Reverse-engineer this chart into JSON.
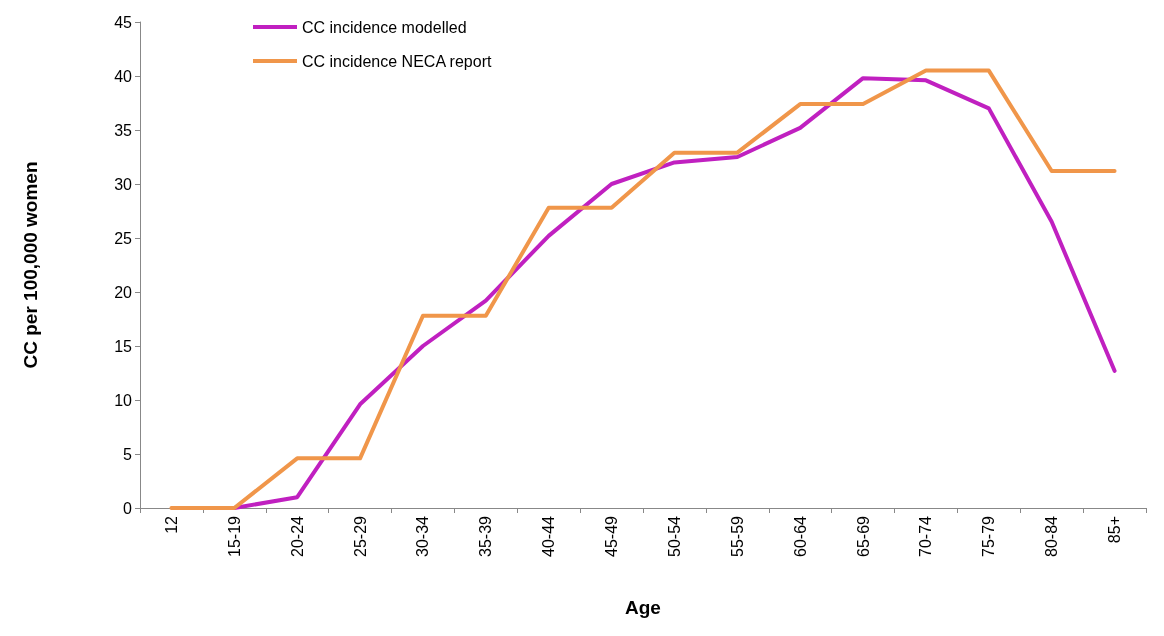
{
  "chart_data": {
    "type": "line",
    "xlabel": "Age",
    "ylabel": "CC per 100,000 women",
    "categories": [
      "12",
      "15-19",
      "20-24",
      "25-29",
      "30-34",
      "35-39",
      "40-44",
      "45-49",
      "50-54",
      "55-59",
      "60-64",
      "65-69",
      "70-74",
      "75-79",
      "80-84",
      "85+"
    ],
    "series": [
      {
        "name": "CC incidence modelled",
        "color": "#c020c0",
        "values": [
          null,
          0,
          1.0,
          9.6,
          15.0,
          19.2,
          25.2,
          30.0,
          32.0,
          32.5,
          35.2,
          39.8,
          39.6,
          37.0,
          26.5,
          12.7
        ]
      },
      {
        "name": "CC incidence NECA report",
        "color": "#f0964a",
        "values": [
          0,
          0,
          4.6,
          4.6,
          17.8,
          17.8,
          27.8,
          27.8,
          32.9,
          32.9,
          37.4,
          37.4,
          40.5,
          40.5,
          31.2,
          31.2
        ]
      }
    ],
    "ylim": [
      0,
      45
    ],
    "yticks": [
      0,
      5,
      10,
      15,
      20,
      25,
      30,
      35,
      40,
      45
    ],
    "grid": false,
    "legend": "top left",
    "marker": "none",
    "line_style": "solid"
  }
}
